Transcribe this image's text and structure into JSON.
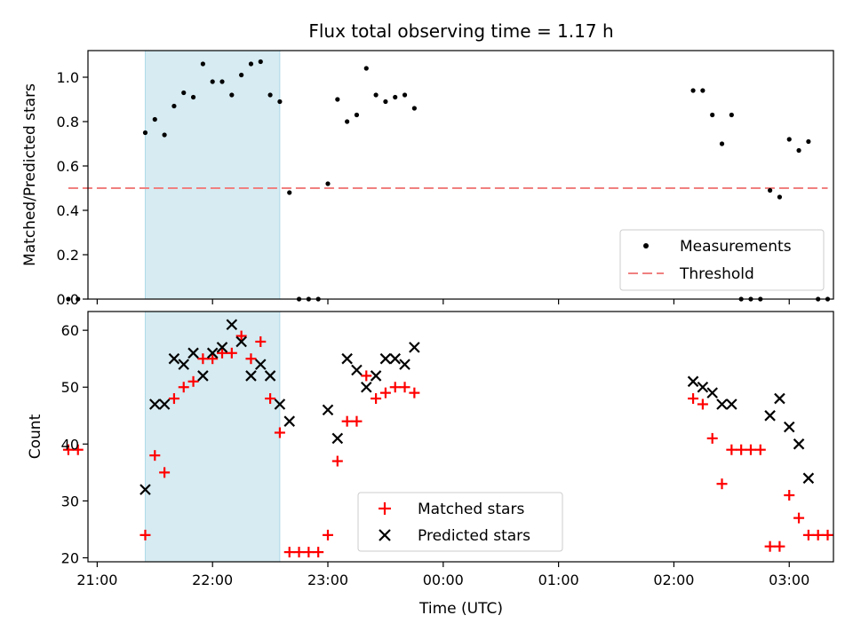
{
  "chart_data": {
    "title": "Flux total observing time = 1.17 h",
    "colors": {
      "measurement": "#000000",
      "threshold": "#f08080",
      "matched": "#ff0000",
      "predicted": "#000000",
      "highlight": "#add8e6"
    },
    "x_axis": {
      "label": "Time (UTC)",
      "type": "time",
      "range": [
        "21:00",
        "03:18"
      ],
      "tick_labels": [
        "21:00",
        "22:00",
        "23:00",
        "00:00",
        "01:00",
        "02:00",
        "03:00"
      ]
    },
    "highlight_span": [
      "21:25",
      "22:35"
    ],
    "charts": [
      {
        "type": "scatter",
        "ylabel": "Matched/Predicted stars",
        "ylim": [
          0,
          1.12
        ],
        "y_ticks": [
          "0.0",
          "0.2",
          "0.4",
          "0.6",
          "0.8",
          "1.0"
        ],
        "legend_position": "lower right",
        "series": [
          {
            "name": "Measurements",
            "marker": "dot",
            "points": [
              [
                "20:45",
                0.0
              ],
              [
                "20:50",
                0.0
              ],
              [
                "21:25",
                0.75
              ],
              [
                "21:30",
                0.81
              ],
              [
                "21:35",
                0.74
              ],
              [
                "21:40",
                0.87
              ],
              [
                "21:45",
                0.93
              ],
              [
                "21:50",
                0.91
              ],
              [
                "21:55",
                1.06
              ],
              [
                "22:00",
                0.98
              ],
              [
                "22:05",
                0.98
              ],
              [
                "22:10",
                0.92
              ],
              [
                "22:15",
                1.01
              ],
              [
                "22:20",
                1.06
              ],
              [
                "22:25",
                1.07
              ],
              [
                "22:30",
                0.92
              ],
              [
                "22:35",
                0.89
              ],
              [
                "22:40",
                0.48
              ],
              [
                "22:45",
                0.0
              ],
              [
                "22:50",
                0.0
              ],
              [
                "22:55",
                0.0
              ],
              [
                "23:00",
                0.52
              ],
              [
                "23:05",
                0.9
              ],
              [
                "23:10",
                0.8
              ],
              [
                "23:15",
                0.83
              ],
              [
                "23:20",
                1.04
              ],
              [
                "23:25",
                0.92
              ],
              [
                "23:30",
                0.89
              ],
              [
                "23:35",
                0.91
              ],
              [
                "23:40",
                0.92
              ],
              [
                "23:45",
                0.86
              ],
              [
                "02:10",
                0.94
              ],
              [
                "02:15",
                0.94
              ],
              [
                "02:20",
                0.83
              ],
              [
                "02:25",
                0.7
              ],
              [
                "02:30",
                0.83
              ],
              [
                "02:35",
                0.0
              ],
              [
                "02:40",
                0.0
              ],
              [
                "02:45",
                0.0
              ],
              [
                "02:50",
                0.49
              ],
              [
                "02:55",
                0.46
              ],
              [
                "03:00",
                0.72
              ],
              [
                "03:05",
                0.67
              ],
              [
                "03:10",
                0.71
              ],
              [
                "03:15",
                0.0
              ],
              [
                "03:20",
                0.0
              ]
            ]
          },
          {
            "name": "Threshold",
            "line": "dashed",
            "x": [
              "20:45",
              "03:20"
            ],
            "y": [
              0.5,
              0.5
            ]
          }
        ]
      },
      {
        "type": "scatter",
        "ylabel": "Count",
        "ylim": [
          19.3,
          63.3
        ],
        "y_ticks": [
          "20",
          "30",
          "40",
          "50",
          "60"
        ],
        "legend_position": "lower center",
        "series": [
          {
            "name": "Matched stars",
            "marker": "plus",
            "points": [
              [
                "20:45",
                39
              ],
              [
                "20:50",
                39
              ],
              [
                "21:25",
                24
              ],
              [
                "21:30",
                38
              ],
              [
                "21:35",
                35
              ],
              [
                "21:40",
                48
              ],
              [
                "21:45",
                50
              ],
              [
                "21:50",
                51
              ],
              [
                "21:55",
                55
              ],
              [
                "22:00",
                55
              ],
              [
                "22:05",
                56
              ],
              [
                "22:10",
                56
              ],
              [
                "22:15",
                59
              ],
              [
                "22:20",
                55
              ],
              [
                "22:25",
                58
              ],
              [
                "22:30",
                48
              ],
              [
                "22:35",
                42
              ],
              [
                "22:40",
                21
              ],
              [
                "22:45",
                21
              ],
              [
                "22:50",
                21
              ],
              [
                "22:55",
                21
              ],
              [
                "23:00",
                24
              ],
              [
                "23:05",
                37
              ],
              [
                "23:10",
                44
              ],
              [
                "23:15",
                44
              ],
              [
                "23:20",
                52
              ],
              [
                "23:25",
                48
              ],
              [
                "23:30",
                49
              ],
              [
                "23:35",
                50
              ],
              [
                "23:40",
                50
              ],
              [
                "23:45",
                49
              ],
              [
                "02:10",
                48
              ],
              [
                "02:15",
                47
              ],
              [
                "02:20",
                41
              ],
              [
                "02:25",
                33
              ],
              [
                "02:30",
                39
              ],
              [
                "02:35",
                39
              ],
              [
                "02:40",
                39
              ],
              [
                "02:45",
                39
              ],
              [
                "02:50",
                22
              ],
              [
                "02:55",
                22
              ],
              [
                "03:00",
                31
              ],
              [
                "03:05",
                27
              ],
              [
                "03:10",
                24
              ],
              [
                "03:15",
                24
              ],
              [
                "03:20",
                24
              ]
            ]
          },
          {
            "name": "Predicted stars",
            "marker": "x",
            "points": [
              [
                "21:25",
                32
              ],
              [
                "21:30",
                47
              ],
              [
                "21:35",
                47
              ],
              [
                "21:40",
                55
              ],
              [
                "21:45",
                54
              ],
              [
                "21:50",
                56
              ],
              [
                "21:55",
                52
              ],
              [
                "22:00",
                56
              ],
              [
                "22:05",
                57
              ],
              [
                "22:10",
                61
              ],
              [
                "22:15",
                58
              ],
              [
                "22:20",
                52
              ],
              [
                "22:25",
                54
              ],
              [
                "22:30",
                52
              ],
              [
                "22:35",
                47
              ],
              [
                "22:40",
                44
              ],
              [
                "23:00",
                46
              ],
              [
                "23:05",
                41
              ],
              [
                "23:10",
                55
              ],
              [
                "23:15",
                53
              ],
              [
                "23:20",
                50
              ],
              [
                "23:25",
                52
              ],
              [
                "23:30",
                55
              ],
              [
                "23:35",
                55
              ],
              [
                "23:40",
                54
              ],
              [
                "23:45",
                57
              ],
              [
                "02:10",
                51
              ],
              [
                "02:15",
                50
              ],
              [
                "02:20",
                49
              ],
              [
                "02:25",
                47
              ],
              [
                "02:30",
                47
              ],
              [
                "02:50",
                45
              ],
              [
                "02:55",
                48
              ],
              [
                "03:00",
                43
              ],
              [
                "03:05",
                40
              ],
              [
                "03:10",
                34
              ]
            ]
          }
        ]
      }
    ]
  }
}
